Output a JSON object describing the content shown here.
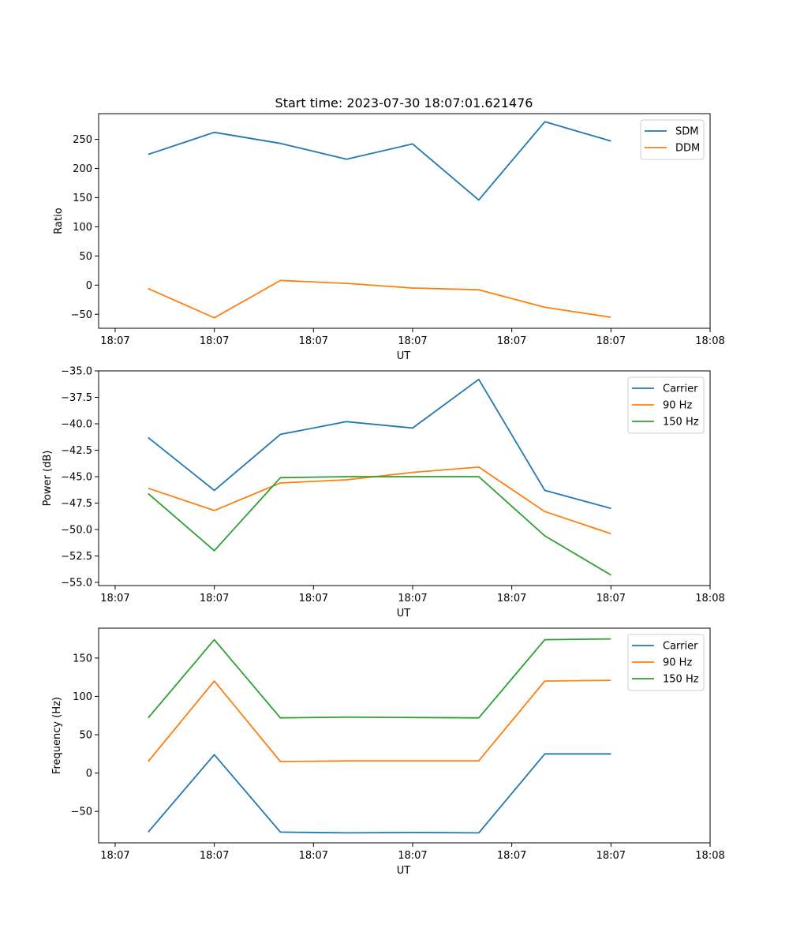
{
  "figure_title": "Start time: 2023-07-30 18:07:01.621476",
  "chart_data": [
    {
      "type": "line",
      "title": "Start time: 2023-07-30 18:07:01.621476",
      "xlabel": "UT",
      "ylabel": "Ratio",
      "x": [
        1,
        2,
        3,
        4,
        5,
        6,
        7,
        8
      ],
      "xlim": [
        0.25,
        9.5
      ],
      "xticks": [
        0.5,
        2,
        3.5,
        5,
        6.5,
        8,
        9.5
      ],
      "xtick_labels": [
        "18:07",
        "18:07",
        "18:07",
        "18:07",
        "18:07",
        "18:07",
        "18:08"
      ],
      "ylim": [
        -74,
        294
      ],
      "yticks": [
        -50,
        0,
        50,
        100,
        150,
        200,
        250
      ],
      "ytick_labels": [
        "−50",
        "0",
        "50",
        "100",
        "150",
        "200",
        "250"
      ],
      "legend_position": "top-right",
      "series": [
        {
          "name": "SDM",
          "color": "#1f77b4",
          "values": [
            224,
            262,
            243,
            216,
            242,
            146,
            280,
            247
          ]
        },
        {
          "name": "DDM",
          "color": "#ff7f0e",
          "values": [
            -6,
            -56,
            8,
            3,
            -5,
            -8,
            -38,
            -55
          ]
        }
      ]
    },
    {
      "type": "line",
      "xlabel": "UT",
      "ylabel": "Power (dB)",
      "x": [
        1,
        2,
        3,
        4,
        5,
        6,
        7,
        8
      ],
      "xlim": [
        0.25,
        9.5
      ],
      "xticks": [
        0.5,
        2,
        3.5,
        5,
        6.5,
        8,
        9.5
      ],
      "xtick_labels": [
        "18:07",
        "18:07",
        "18:07",
        "18:07",
        "18:07",
        "18:07",
        "18:08"
      ],
      "ylim": [
        -55.3,
        -35.0
      ],
      "yticks": [
        -55.0,
        -52.5,
        -50.0,
        -47.5,
        -45.0,
        -42.5,
        -40.0,
        -37.5,
        -35.0
      ],
      "ytick_labels": [
        "−55.0",
        "−52.5",
        "−50.0",
        "−47.5",
        "−45.0",
        "−42.5",
        "−40.0",
        "−37.5",
        "−35.0"
      ],
      "legend_position": "top-right",
      "series": [
        {
          "name": "Carrier",
          "color": "#1f77b4",
          "values": [
            -41.3,
            -46.3,
            -41.0,
            -39.8,
            -40.4,
            -35.8,
            -46.3,
            -48.0
          ]
        },
        {
          "name": "90 Hz",
          "color": "#ff7f0e",
          "values": [
            -46.1,
            -48.2,
            -45.6,
            -45.3,
            -44.6,
            -44.1,
            -48.3,
            -50.4
          ]
        },
        {
          "name": "150 Hz",
          "color": "#2ca02c",
          "values": [
            -46.6,
            -52.0,
            -45.1,
            -45.0,
            -45.0,
            -45.0,
            -50.6,
            -54.3
          ]
        }
      ]
    },
    {
      "type": "line",
      "xlabel": "UT",
      "ylabel": "Frequency (Hz)",
      "x": [
        1,
        2,
        3,
        4,
        5,
        6,
        7,
        8
      ],
      "xlim": [
        0.25,
        9.5
      ],
      "xticks": [
        0.5,
        2,
        3.5,
        5,
        6.5,
        8,
        9.5
      ],
      "xtick_labels": [
        "18:07",
        "18:07",
        "18:07",
        "18:07",
        "18:07",
        "18:07",
        "18:08"
      ],
      "ylim": [
        -91,
        189
      ],
      "yticks": [
        -50,
        0,
        50,
        100,
        150
      ],
      "ytick_labels": [
        "−50",
        "0",
        "50",
        "100",
        "150"
      ],
      "legend_position": "top-right",
      "series": [
        {
          "name": "Carrier",
          "color": "#1f77b4",
          "values": [
            -77,
            24,
            -77,
            -78,
            -77.5,
            -78,
            25,
            25
          ]
        },
        {
          "name": "90 Hz",
          "color": "#ff7f0e",
          "values": [
            15,
            120,
            15,
            16,
            16,
            16,
            120,
            121
          ]
        },
        {
          "name": "150 Hz",
          "color": "#2ca02c",
          "values": [
            72,
            174,
            72,
            73,
            72.5,
            72,
            174,
            175
          ]
        }
      ]
    }
  ]
}
